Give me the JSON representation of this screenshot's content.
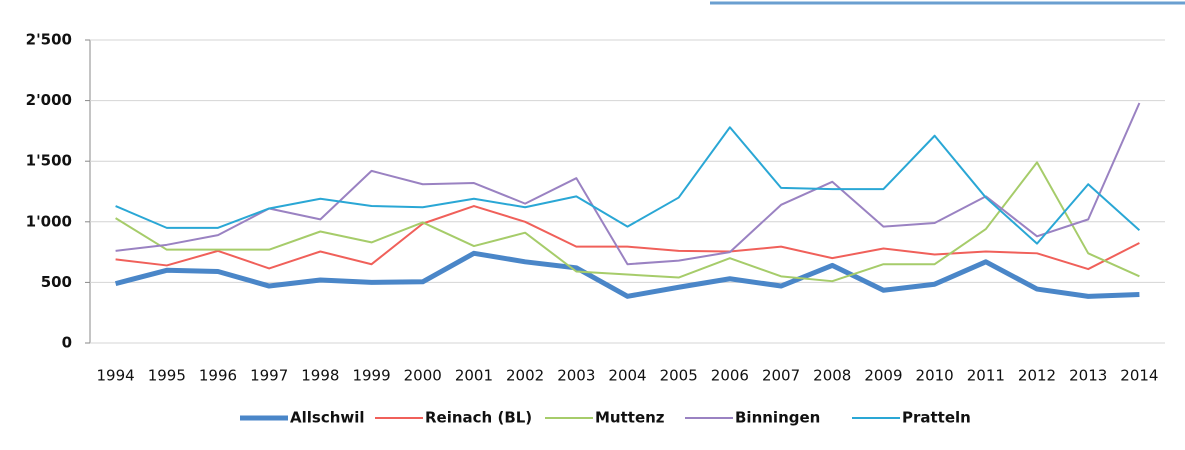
{
  "chart_data": {
    "type": "line",
    "categories": [
      "1994",
      "1995",
      "1996",
      "1997",
      "1998",
      "1999",
      "2000",
      "2001",
      "2002",
      "2003",
      "2004",
      "2005",
      "2006",
      "2007",
      "2008",
      "2009",
      "2010",
      "2011",
      "2012",
      "2013",
      "2014"
    ],
    "series": [
      {
        "name": "Allschwil",
        "color": "#4a86c8",
        "line_width": 5,
        "values": [
          490,
          600,
          590,
          470,
          520,
          500,
          505,
          740,
          670,
          620,
          385,
          460,
          530,
          470,
          640,
          435,
          485,
          670,
          445,
          385,
          400
        ]
      },
      {
        "name": "Reinach (BL)",
        "color": "#f0605a",
        "line_width": 2,
        "values": [
          690,
          640,
          760,
          615,
          755,
          650,
          985,
          1130,
          1000,
          795,
          795,
          760,
          755,
          795,
          700,
          780,
          730,
          755,
          740,
          610,
          825
        ]
      },
      {
        "name": "Muttenz",
        "color": "#a6cc6a",
        "line_width": 2,
        "values": [
          1030,
          770,
          770,
          770,
          920,
          830,
          995,
          800,
          910,
          590,
          565,
          540,
          700,
          550,
          510,
          650,
          650,
          940,
          1490,
          740,
          550
        ]
      },
      {
        "name": "Binningen",
        "color": "#9a82c2",
        "line_width": 2,
        "values": [
          760,
          810,
          890,
          1110,
          1020,
          1420,
          1310,
          1320,
          1150,
          1360,
          650,
          680,
          750,
          1140,
          1330,
          960,
          990,
          1210,
          880,
          1020,
          1980
        ]
      },
      {
        "name": "Pratteln",
        "color": "#2aa7d5",
        "line_width": 2,
        "values": [
          1130,
          950,
          950,
          1110,
          1190,
          1130,
          1120,
          1190,
          1120,
          1210,
          960,
          1200,
          1780,
          1280,
          1270,
          1270,
          1710,
          1200,
          820,
          1310,
          930
        ]
      }
    ],
    "ylim": [
      0,
      2500
    ],
    "yticks": [
      0,
      500,
      {
        "value": 1000,
        "label": "1'000"
      },
      {
        "value": 1500,
        "label": "1'500"
      },
      {
        "value": 2000,
        "label": "2'000"
      },
      {
        "value": 2500,
        "label": "2'500"
      }
    ],
    "grid": true,
    "legend": "bottom"
  }
}
